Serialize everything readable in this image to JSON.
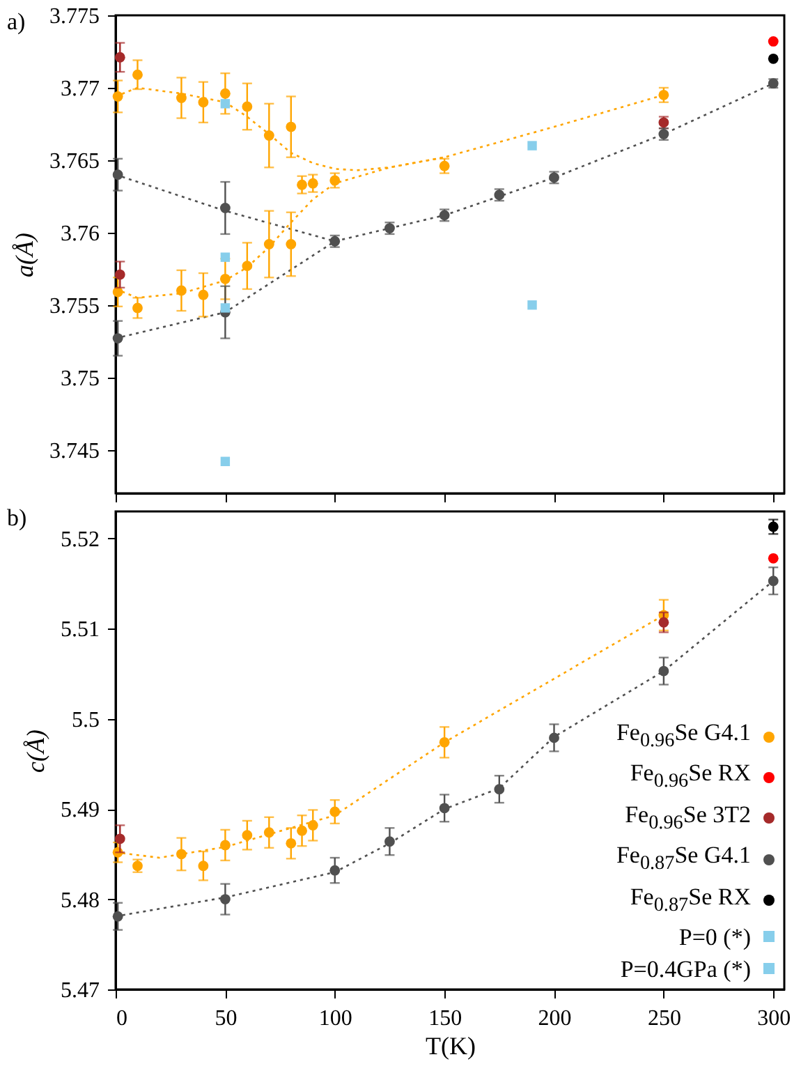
{
  "chart_data": [
    {
      "type": "scatter",
      "ylabel": "a(Å)",
      "annotations": [
        "a)"
      ],
      "xlim": [
        0,
        305
      ],
      "xticks": [
        0,
        50,
        100,
        150,
        200,
        250,
        300
      ],
      "ylim": [
        3.742,
        3.775
      ],
      "yticks": [
        3.745,
        3.75,
        3.755,
        3.76,
        3.765,
        3.77,
        3.775
      ],
      "tick_labels": "y",
      "series": [
        {
          "type": "line",
          "color": "#ffa500",
          "line_style": "dotted",
          "x": [
            0,
            10,
            30,
            50,
            60,
            70,
            80,
            90,
            100,
            110,
            125,
            150,
            200,
            250
          ],
          "values": [
            3.7694,
            3.77,
            3.7696,
            3.769,
            3.768,
            3.7668,
            3.7655,
            3.7648,
            3.7644,
            3.7643,
            3.7645,
            3.7652,
            3.7673,
            3.7695
          ]
        },
        {
          "type": "line",
          "color": "#ffa500",
          "line_style": "dotted",
          "x": [
            0,
            10,
            30,
            50,
            60,
            70,
            80,
            90,
            100,
            125,
            150
          ],
          "values": [
            3.7561,
            3.7555,
            3.7558,
            3.7567,
            3.7576,
            3.759,
            3.7607,
            3.7623,
            3.7634,
            3.7645,
            3.7652
          ]
        },
        {
          "type": "line",
          "color": "#505050",
          "line_style": "dotted",
          "x": [
            0,
            50,
            100
          ],
          "values": [
            3.764,
            3.7615,
            3.7594
          ]
        },
        {
          "type": "line",
          "color": "#505050",
          "line_style": "dotted",
          "x": [
            0,
            50,
            100,
            125,
            150,
            175,
            200,
            250,
            300
          ],
          "values": [
            3.7527,
            3.7545,
            3.7594,
            3.7603,
            3.7612,
            3.7625,
            3.7638,
            3.7668,
            3.7703
          ]
        },
        {
          "color": "#ffa500",
          "marker": "circle",
          "x": [
            1,
            10,
            30,
            40,
            50,
            60,
            70,
            80,
            85,
            90,
            100,
            1,
            10,
            30,
            40,
            50,
            60,
            70,
            80,
            150,
            250
          ],
          "values": [
            3.7694,
            3.7709,
            3.7693,
            3.769,
            3.7696,
            3.7687,
            3.7667,
            3.7673,
            3.7633,
            3.7634,
            3.7636,
            3.7559,
            3.7548,
            3.756,
            3.7557,
            3.7568,
            3.7577,
            3.7592,
            3.7592,
            3.7646,
            3.7695
          ],
          "errors": [
            0.0011,
            0.001,
            0.0014,
            0.0014,
            0.0014,
            0.0016,
            0.0022,
            0.0021,
            0.0006,
            0.0006,
            0.0005,
            0.001,
            0.0007,
            0.0014,
            0.0015,
            0.0014,
            0.0016,
            0.0023,
            0.0022,
            0.0005,
            0.0005
          ]
        },
        {
          "color": "#ff0000",
          "marker": "circle",
          "x": [
            300
          ],
          "values": [
            3.7732
          ]
        },
        {
          "color": "#a52a2a",
          "marker": "circle",
          "x": [
            2,
            2,
            250
          ],
          "values": [
            3.7721,
            3.7571,
            3.7676
          ],
          "errors": [
            0.001,
            0.0009,
            0.0004
          ]
        },
        {
          "color": "#505050",
          "marker": "circle",
          "x": [
            1,
            1,
            50,
            50,
            100,
            125,
            150,
            175,
            200,
            250,
            300
          ],
          "values": [
            3.764,
            3.7527,
            3.7617,
            3.7545,
            3.7594,
            3.7603,
            3.7612,
            3.7626,
            3.7638,
            3.7668,
            3.7703
          ],
          "errors": [
            0.0011,
            0.0012,
            0.0018,
            0.0018,
            0.0004,
            0.0004,
            0.0004,
            0.0004,
            0.0004,
            0.0004,
            0.0003
          ]
        },
        {
          "color": "#000000",
          "marker": "circle",
          "x": [
            300
          ],
          "values": [
            3.772
          ]
        },
        {
          "color": "#87ceeb",
          "marker": "square",
          "x": [
            50,
            50,
            190
          ],
          "values": [
            3.7689,
            3.7548,
            3.766
          ]
        },
        {
          "color": "#87ceeb",
          "marker": "square",
          "x": [
            50,
            50,
            190
          ],
          "values": [
            3.7583,
            3.7442,
            3.755
          ]
        }
      ]
    },
    {
      "type": "scatter",
      "ylabel": "c(Å)",
      "xlabel": "T(K)",
      "annotations": [
        "b)"
      ],
      "xlim": [
        0,
        305
      ],
      "xticks": [
        0,
        50,
        100,
        150,
        200,
        250,
        300
      ],
      "ylim": [
        5.47,
        5.523
      ],
      "yticks": [
        5.47,
        5.48,
        5.49,
        5.5,
        5.51,
        5.52
      ],
      "legend": "bottom right",
      "series": [
        {
          "type": "line",
          "color": "#ffa500",
          "line_style": "dotted",
          "x": [
            0,
            20,
            50,
            100,
            150,
            250
          ],
          "values": [
            5.4852,
            5.4846,
            5.4858,
            5.4893,
            5.4974,
            5.5115
          ]
        },
        {
          "type": "line",
          "color": "#505050",
          "line_style": "dotted",
          "x": [
            0,
            50,
            100,
            125,
            150,
            175,
            200,
            250,
            300
          ],
          "values": [
            5.4781,
            5.4802,
            5.483,
            5.4862,
            5.49,
            5.4923,
            5.498,
            5.5053,
            5.5153
          ]
        },
        {
          "name": "Fe$_{0.96}$Se G4.1",
          "color": "#ffa500",
          "marker": "circle",
          "x": [
            1,
            10,
            30,
            40,
            50,
            60,
            70,
            80,
            85,
            90,
            100,
            150,
            250
          ],
          "values": [
            5.4852,
            5.4837,
            5.485,
            5.4837,
            5.486,
            5.4871,
            5.4874,
            5.4862,
            5.4876,
            5.4882,
            5.4897,
            5.4974,
            5.5115
          ],
          "errors": [
            0.0011,
            0.0007,
            0.0018,
            0.0016,
            0.0017,
            0.0016,
            0.0017,
            0.0017,
            0.0017,
            0.0017,
            0.0013,
            0.0017,
            0.0017
          ]
        },
        {
          "name": "Fe$_{0.96}$Se RX",
          "color": "#ff0000",
          "marker": "circle",
          "x": [
            300
          ],
          "values": [
            5.5178
          ]
        },
        {
          "name": "Fe$_{0.96}$Se 3T2",
          "color": "#a52a2a",
          "marker": "circle",
          "x": [
            2,
            250
          ],
          "values": [
            5.4867,
            5.5107
          ],
          "errors": [
            0.0015,
            0.0011
          ]
        },
        {
          "name": "Fe$_{0.87}$Se G4.1",
          "color": "#505050",
          "marker": "circle",
          "x": [
            1,
            50,
            100,
            125,
            150,
            175,
            200,
            250,
            300
          ],
          "values": [
            5.4781,
            5.48,
            5.4832,
            5.4864,
            5.4901,
            5.4922,
            5.4979,
            5.5053,
            5.5153
          ],
          "errors": [
            0.0015,
            0.0017,
            0.0014,
            0.0015,
            0.0015,
            0.0015,
            0.0015,
            0.0015,
            0.0015
          ]
        },
        {
          "name": "Fe$_{0.87}$Se RX",
          "color": "#000000",
          "marker": "circle",
          "x": [
            300
          ],
          "values": [
            5.5213
          ],
          "errors": [
            0.0008
          ]
        },
        {
          "name": "P=0 (*)",
          "color": "#87ceeb",
          "marker": "square"
        },
        {
          "name": "P=0.4GPa (*)",
          "color": "#87ceeb",
          "marker": "square"
        }
      ]
    }
  ]
}
